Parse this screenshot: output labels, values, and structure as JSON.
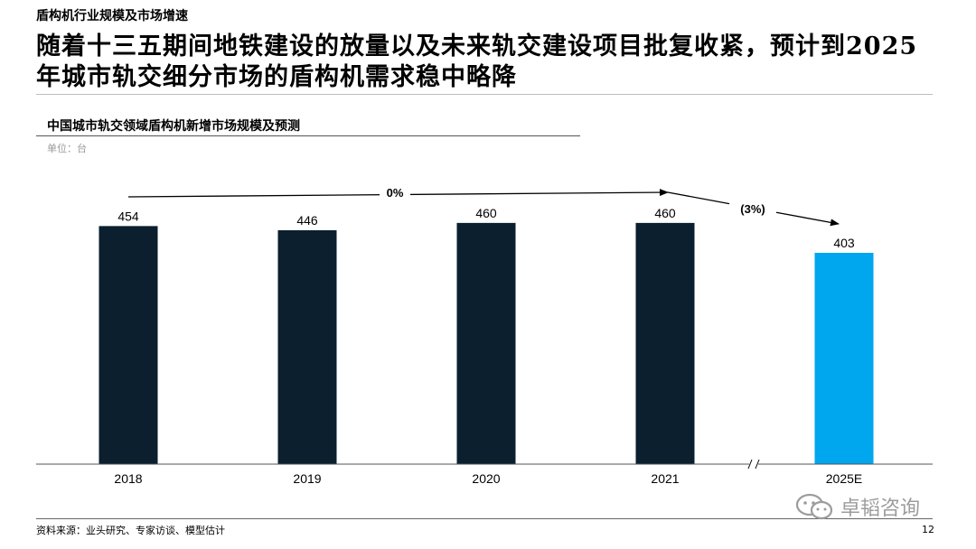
{
  "header": {
    "section_title": "盾构机行业规模及市场增速",
    "headline": "随着十三五期间地铁建设的放量以及未来轨交建设项目批复收紧，预计到2025年城市轨交细分市场的盾构机需求稳中略降"
  },
  "chart_data": {
    "type": "bar",
    "title": "中国城市轨交领域盾构机新增市场规模及预测",
    "unit_label": "单位：台",
    "categories": [
      "2018",
      "2019",
      "2020",
      "2021",
      "2025E"
    ],
    "values": [
      454,
      446,
      460,
      460,
      403
    ],
    "data_labels": [
      "454",
      "446",
      "460",
      "460",
      "403"
    ],
    "colors": [
      "#0b1f2e",
      "#0b1f2e",
      "#0b1f2e",
      "#0b1f2e",
      "#00a6ee"
    ],
    "axis_break_between": [
      "2021",
      "2025E"
    ],
    "growth_annotations": [
      {
        "label": "0%",
        "from": "2018",
        "to": "2021"
      },
      {
        "label": "(3%)",
        "from": "2021",
        "to": "2025E"
      }
    ]
  },
  "footer": {
    "source": "资料来源：业头研究、专家访谈、模型估计",
    "watermark": "卓韬咨询",
    "page_number": "12"
  }
}
